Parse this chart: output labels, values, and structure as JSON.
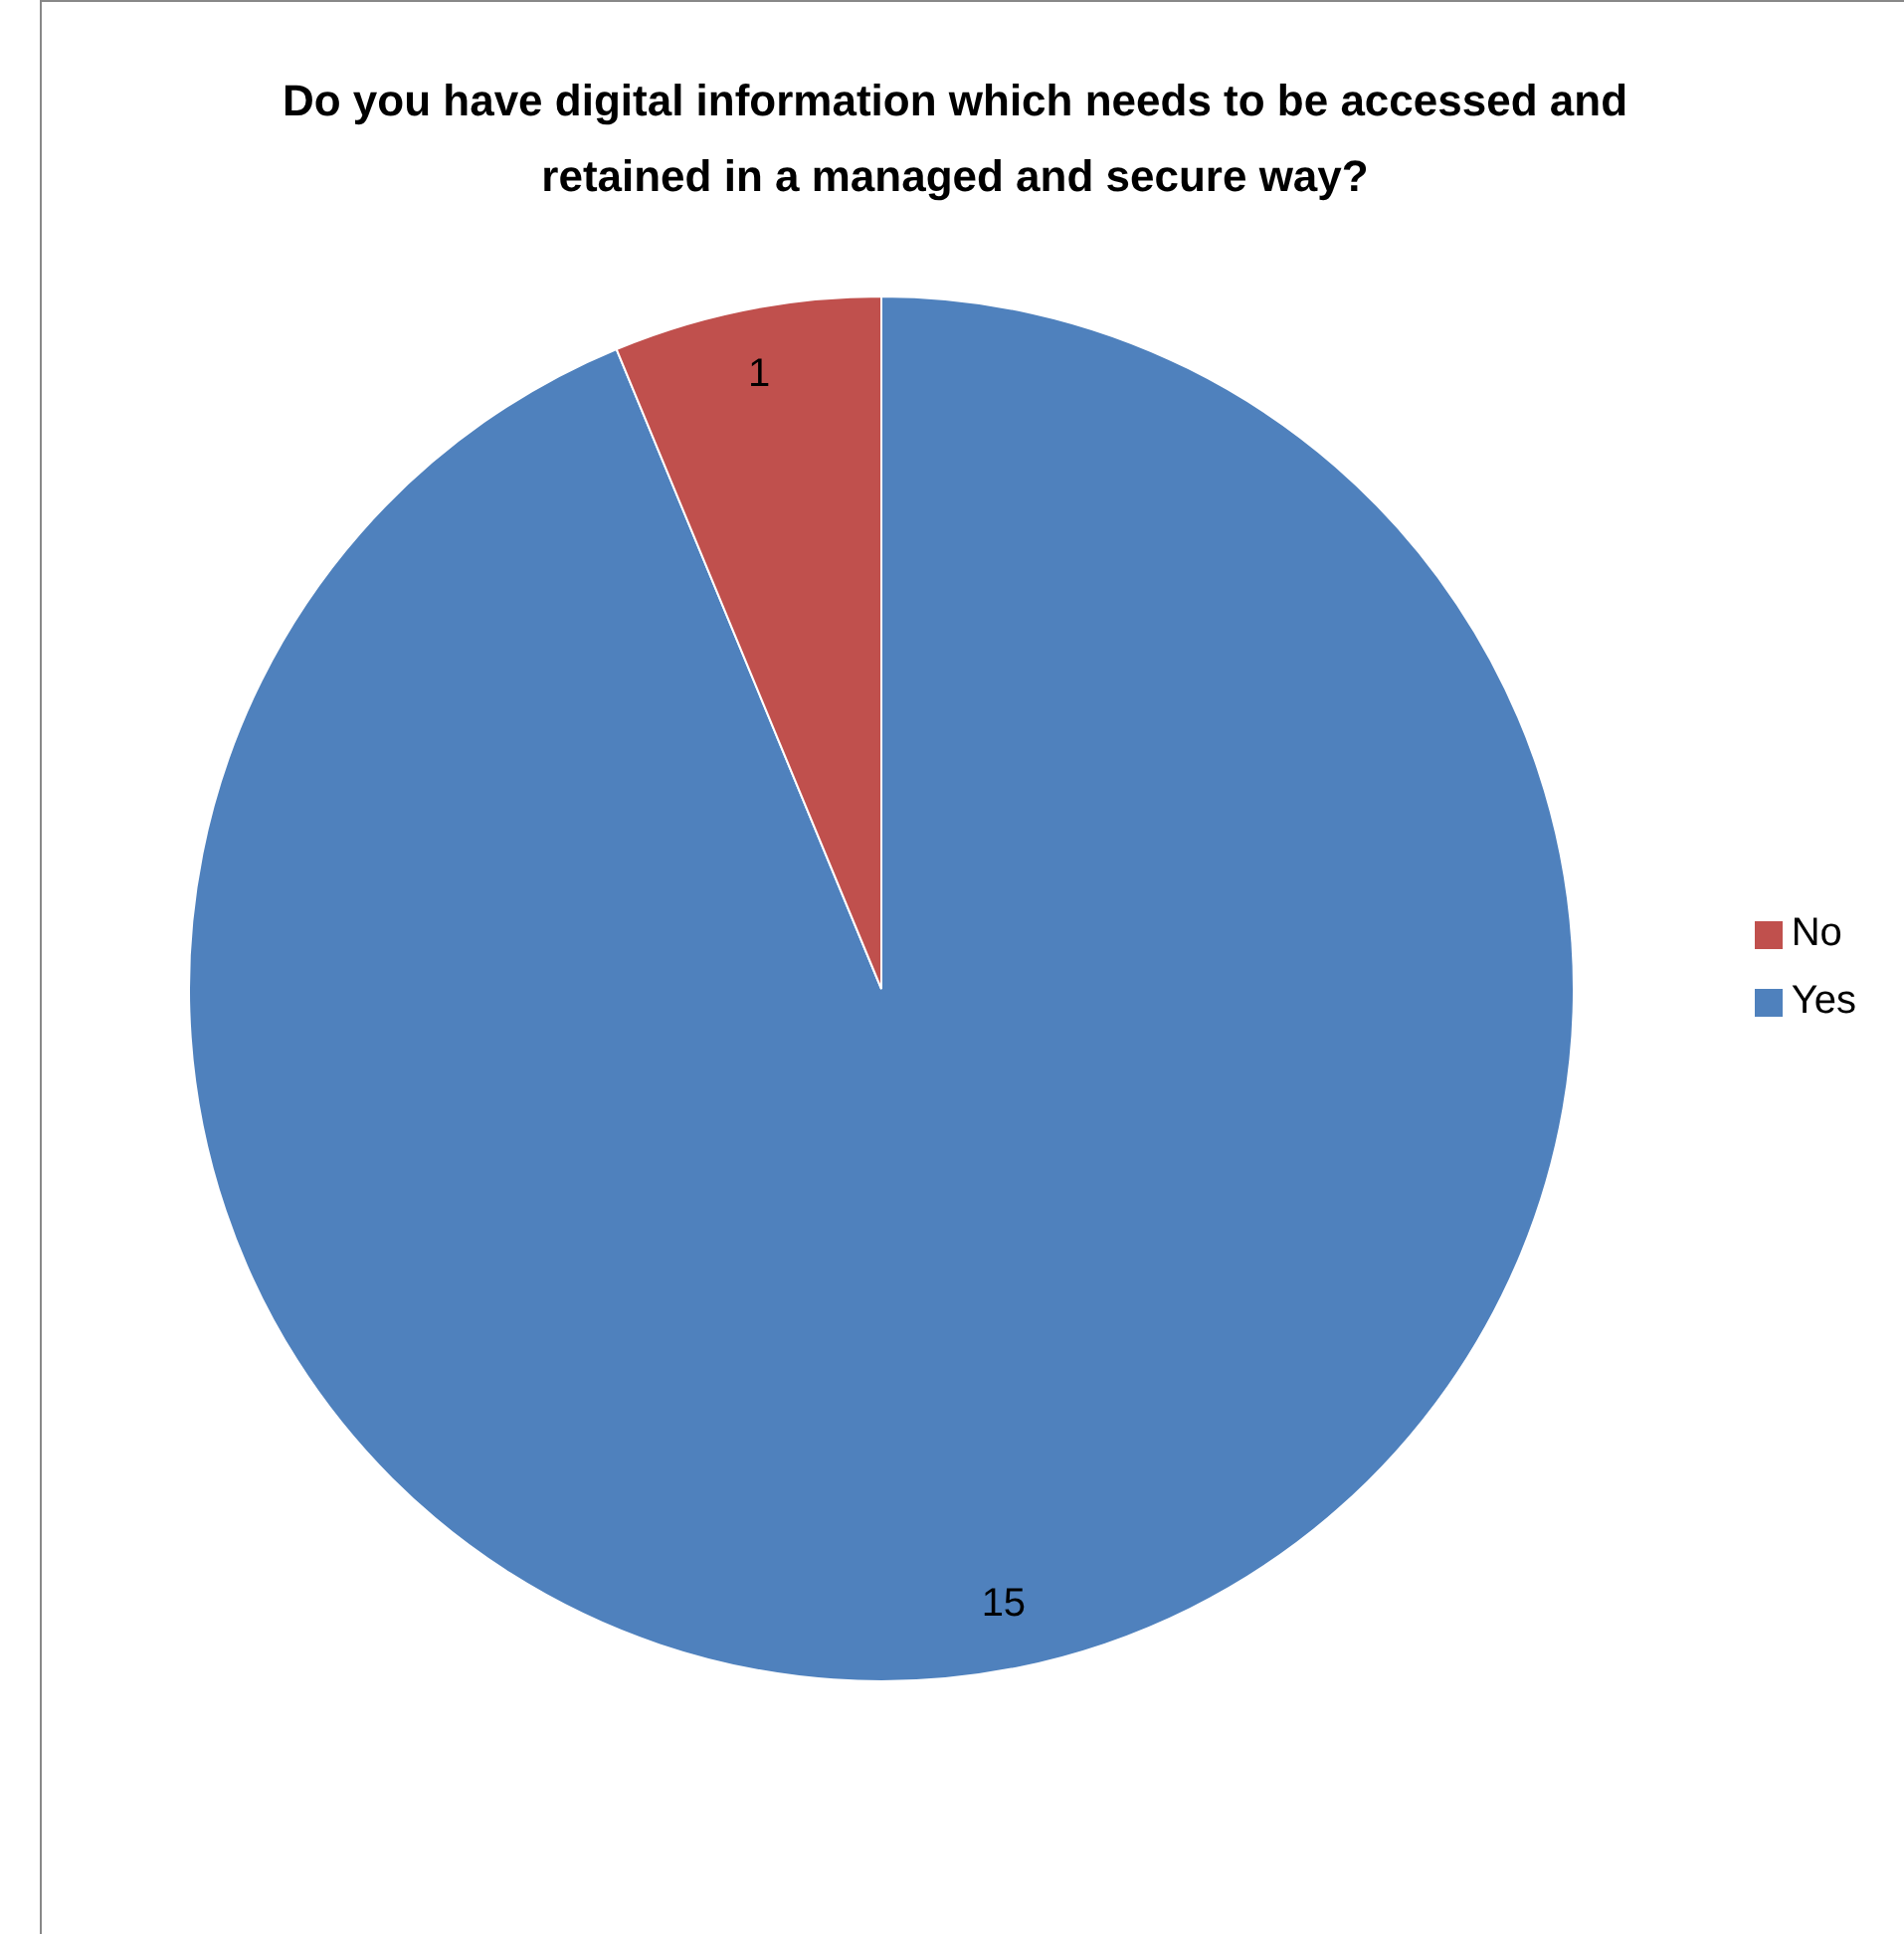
{
  "chart_data": {
    "type": "pie",
    "title": "Do you have digital information which needs to be accessed and retained in a managed and secure way?",
    "categories": [
      "Yes",
      "No"
    ],
    "values": [
      15,
      1
    ],
    "colors": [
      "#4f81bd",
      "#c0504d"
    ],
    "data_labels": true,
    "legend": "right"
  }
}
